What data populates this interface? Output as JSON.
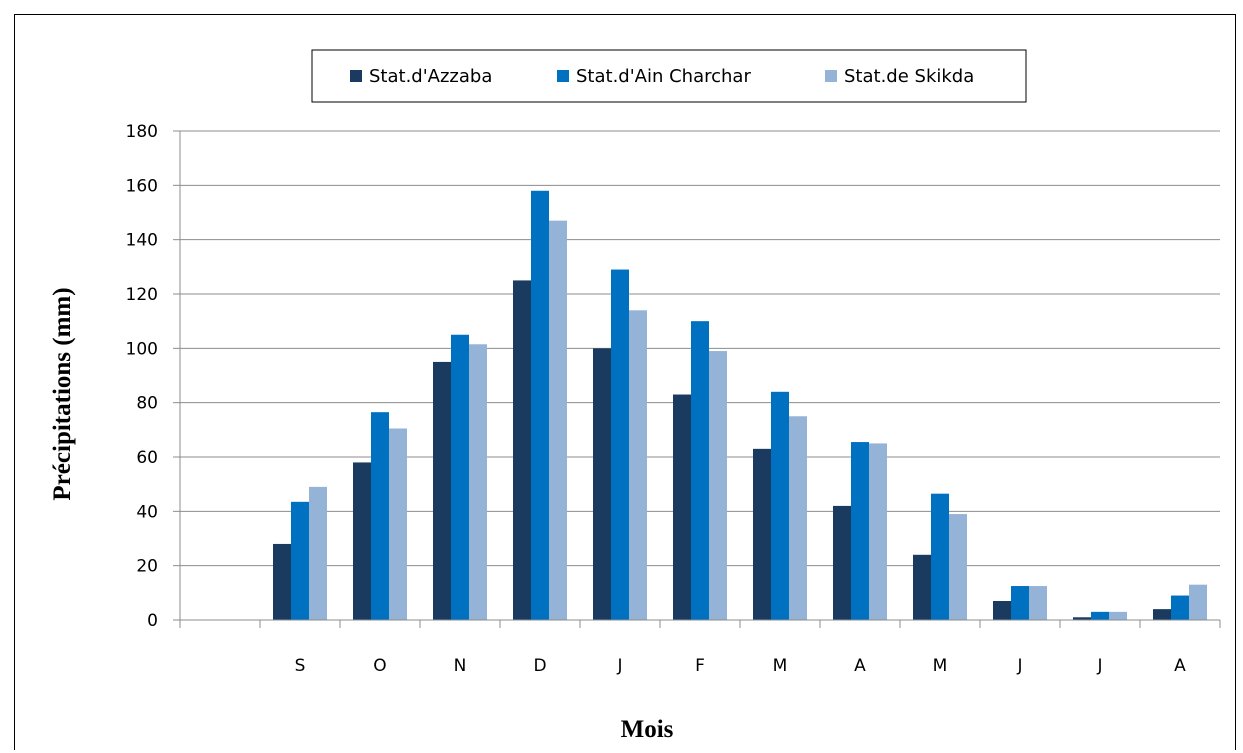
{
  "chart_data": {
    "type": "bar",
    "title": "",
    "xlabel": "Mois",
    "ylabel": "Précipitations (mm)",
    "ylim": [
      0,
      180
    ],
    "yticks": [
      0,
      20,
      40,
      60,
      80,
      100,
      120,
      140,
      160,
      180
    ],
    "grid": true,
    "legend_position": "top",
    "categories": [
      "",
      "S",
      "O",
      "N",
      "D",
      "J",
      "F",
      "M",
      "A",
      "M",
      "J",
      "J",
      "A"
    ],
    "series": [
      {
        "name": "Stat.d'Azzaba",
        "color": "#1b3a5f",
        "values": [
          null,
          28,
          58,
          95,
          125,
          100,
          83,
          63,
          42,
          24,
          7,
          1,
          4
        ]
      },
      {
        "name": "Stat.d'Ain Charchar",
        "color": "#0070c0",
        "values": [
          null,
          43.5,
          76.5,
          105,
          158,
          129,
          110,
          84,
          65.5,
          46.5,
          12.5,
          3,
          9
        ]
      },
      {
        "name": "Stat.de Skikda",
        "color": "#95b3d7",
        "values": [
          null,
          49,
          70.5,
          101.5,
          147,
          114,
          99,
          75,
          65,
          39,
          12.5,
          3,
          13
        ]
      }
    ]
  }
}
